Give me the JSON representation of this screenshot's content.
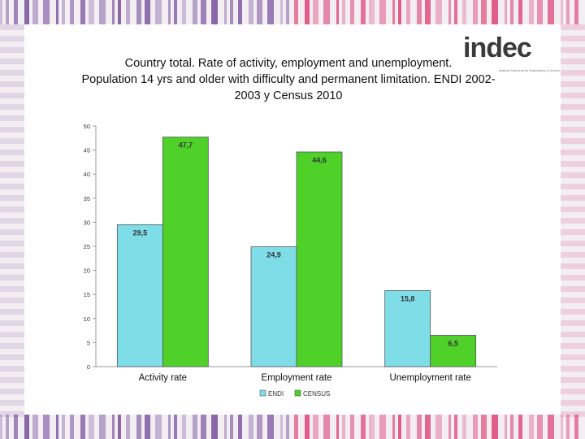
{
  "logo": {
    "text_in": "in",
    "text_dec": "dec",
    "subtitle": "Instituto Nacional de Estadística y Censos"
  },
  "title_lines": [
    "Country total. Rate of activity, employment and unemployment.",
    "Population 14 yrs and older with difficulty and permanent limitation. ENDI 2002-",
    "2003 y Census 2010"
  ],
  "colors": {
    "endi": "#7fdde8",
    "census": "#4fd12a",
    "background": "#f3eef2",
    "stripe_purple": "#5b2d8a",
    "stripe_pink": "#d8205e"
  },
  "chart_data": {
    "type": "bar",
    "categories": [
      "Activity rate",
      "Employment rate",
      "Unemployment rate"
    ],
    "series": [
      {
        "name": "ENDI",
        "values": [
          29.5,
          24.9,
          15.8
        ],
        "labels": [
          "29,5",
          "24,9",
          "15,8"
        ]
      },
      {
        "name": "CENSUS",
        "values": [
          47.7,
          44.6,
          6.5
        ],
        "labels": [
          "47,7",
          "44,6",
          "6,5"
        ]
      }
    ],
    "yticks": [
      0,
      5,
      10,
      15,
      20,
      25,
      30,
      35,
      40,
      45,
      50
    ],
    "ylim": [
      0,
      50
    ],
    "grid": false,
    "legend_position": "bottom"
  }
}
